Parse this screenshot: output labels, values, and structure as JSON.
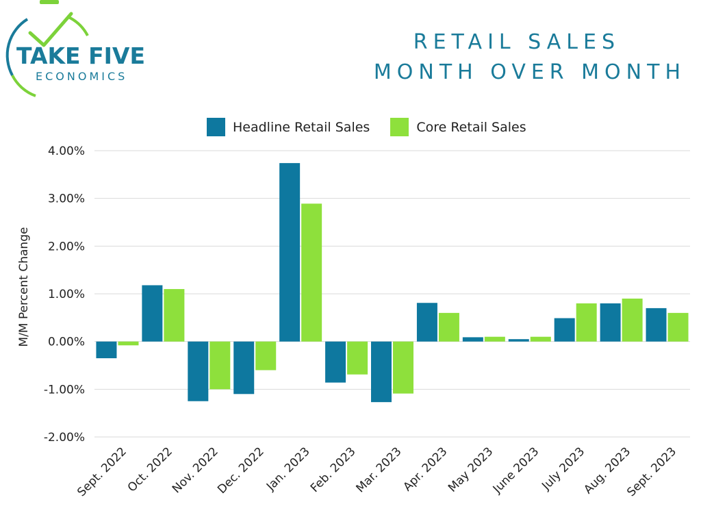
{
  "logo": {
    "line1": "TAKE FIVE",
    "line2": "ECONOMICS"
  },
  "header": {
    "title_line1": "RETAIL SALES",
    "title_line2": "MONTH OVER MONTH"
  },
  "colors": {
    "brand": "#1a7b9a",
    "headline": "#0e789f",
    "core": "#8ee03c",
    "logo_green": "#7cd23a"
  },
  "chart_data": {
    "type": "bar",
    "title": "RETAIL SALES MONTH OVER MONTH",
    "xlabel": "",
    "ylabel": "M/M Percent Change",
    "ylim": [
      -2.0,
      4.0
    ],
    "yticks": [
      4.0,
      3.0,
      2.0,
      1.0,
      0.0,
      -1.0,
      -2.0
    ],
    "ytick_labels": [
      "4.00%",
      "3.00%",
      "2.00%",
      "1.00%",
      "0.00%",
      "-1.00%",
      "-2.00%"
    ],
    "grid": true,
    "legend_position": "top-center",
    "categories": [
      "Sept. 2022",
      "Oct. 2022",
      "Nov. 2022",
      "Dec. 2022",
      "Jan. 2023",
      "Feb. 2023",
      "Mar. 2023",
      "Apr. 2023",
      "May 2023",
      "June 2023",
      "July 2023",
      "Aug. 2023",
      "Sept. 2023"
    ],
    "series": [
      {
        "name": "Headline Retail Sales",
        "values": [
          -0.35,
          1.18,
          -1.25,
          -1.1,
          3.74,
          -0.86,
          -1.27,
          0.81,
          0.09,
          0.05,
          0.49,
          0.8,
          0.7
        ]
      },
      {
        "name": "Core Retail Sales",
        "values": [
          -0.08,
          1.1,
          -1.0,
          -0.6,
          2.89,
          -0.69,
          -1.09,
          0.6,
          0.1,
          0.1,
          0.8,
          0.9,
          0.6
        ]
      }
    ]
  }
}
